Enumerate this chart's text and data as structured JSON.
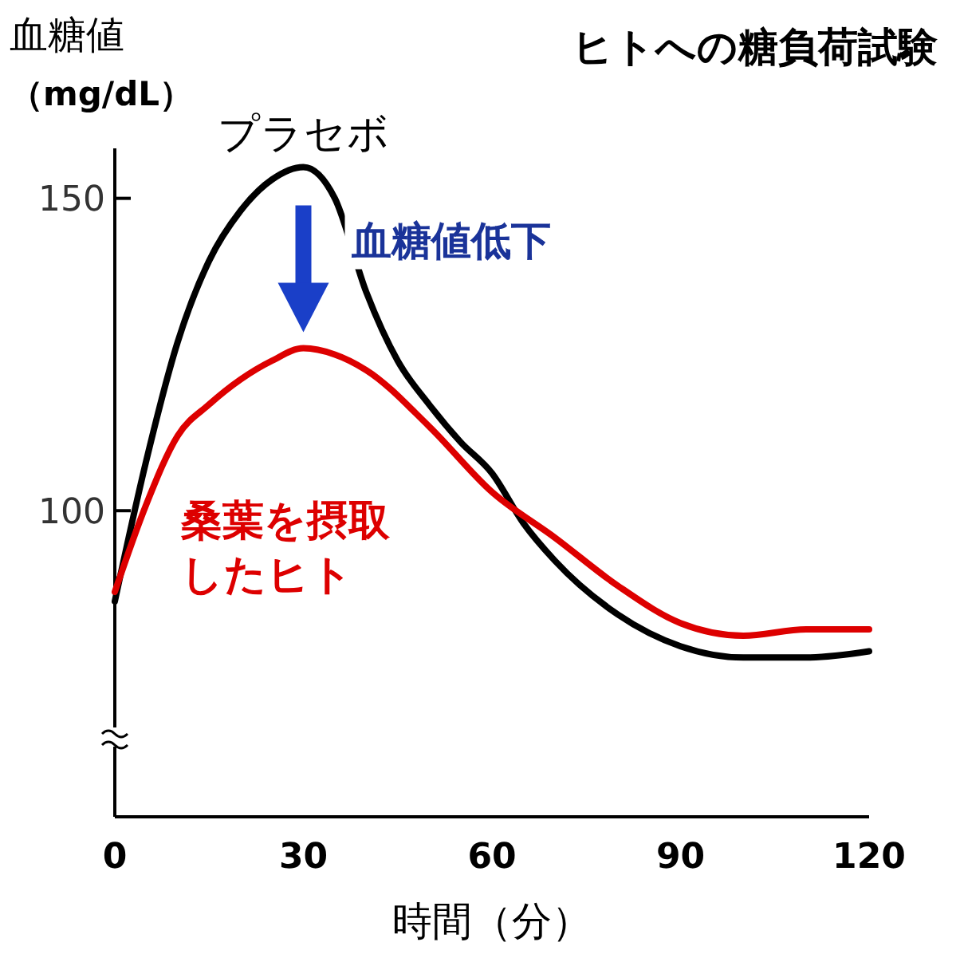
{
  "chart_data": {
    "type": "line",
    "title": "ヒトへの糖負荷試験",
    "ylabel": "血糖値（mg/dL）",
    "xlabel": "時間（分）",
    "xlim": [
      0,
      120
    ],
    "xticks": [
      0,
      30,
      60,
      90,
      120
    ],
    "ylim": [
      51,
      158
    ],
    "yticks": [
      100,
      150
    ],
    "grid": false,
    "marker": "none",
    "line_style": "solid",
    "series": [
      {
        "name": "プラセボ",
        "color": "#000000",
        "x": [
          0,
          5,
          10,
          15,
          20,
          25,
          30,
          35,
          40,
          45,
          50,
          55,
          60,
          65,
          70,
          80,
          90,
          100,
          110,
          120
        ],
        "values": [
          85.5,
          108,
          127,
          140,
          148,
          153,
          155,
          150,
          135,
          124,
          117,
          111,
          106,
          98,
          92,
          83.4,
          78.3,
          76.5,
          76.5,
          77.5
        ]
      },
      {
        "name": "桑葉を摂取したヒト",
        "color": "#dd0000",
        "x": [
          0,
          5,
          10,
          15,
          20,
          25,
          30,
          35,
          40,
          50,
          60,
          70,
          80,
          90,
          100,
          110,
          120
        ],
        "values": [
          87,
          101,
          112,
          117,
          121,
          124,
          126,
          125,
          122.5,
          113.5,
          103,
          95.7,
          88,
          82,
          80,
          81,
          81
        ]
      }
    ],
    "annotations": [
      "血糖値低下"
    ]
  }
}
